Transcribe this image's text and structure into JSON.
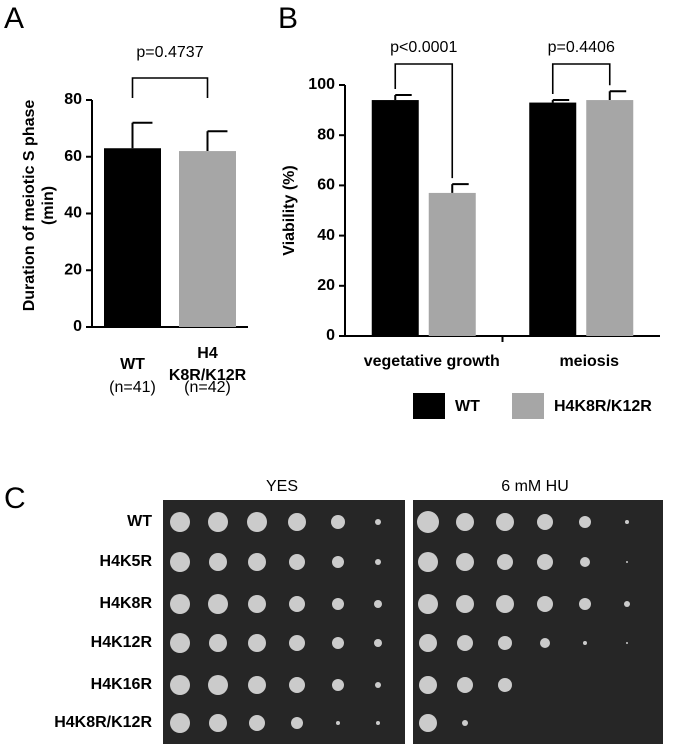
{
  "chart_data": [
    {
      "type": "bar",
      "label": "A",
      "ylabel": [
        "Duration of meiotic S phase",
        "(min)"
      ],
      "categories": [
        [
          "WT"
        ],
        [
          "H4",
          "K8R/K12R"
        ]
      ],
      "category_notes": [
        "(n=41)",
        "(n=42)"
      ],
      "values": [
        63,
        62
      ],
      "errors": [
        9,
        7
      ],
      "colors": [
        "#000000",
        "#a6a6a6"
      ],
      "ylim": [
        0,
        80
      ],
      "yticks": [
        0,
        20,
        40,
        60,
        80
      ],
      "annotations": [
        "p=0.4737"
      ]
    },
    {
      "type": "grouped-bar",
      "label": "B",
      "ylabel": "Viability (%)",
      "categories": [
        "vegetative growth",
        "meiosis"
      ],
      "series": [
        {
          "name": "WT",
          "color": "#000000",
          "values": [
            94,
            93
          ],
          "errors": [
            2,
            1
          ]
        },
        {
          "name": "H4K8R/K12R",
          "color": "#a6a6a6",
          "values": [
            57,
            94
          ],
          "errors": [
            3.5,
            3.5
          ]
        }
      ],
      "ylim": [
        0,
        100
      ],
      "yticks": [
        0,
        20,
        40,
        60,
        80,
        100
      ],
      "annotations": [
        "p<0.0001",
        "p=0.4406"
      ]
    }
  ],
  "panel_c": {
    "label": "C",
    "columns": [
      "YES",
      "6 mM HU"
    ],
    "rows": [
      "WT",
      "H4K5R",
      "H4K8R",
      "H4K12R",
      "H4K16R",
      "H4K8R/K12R"
    ]
  }
}
